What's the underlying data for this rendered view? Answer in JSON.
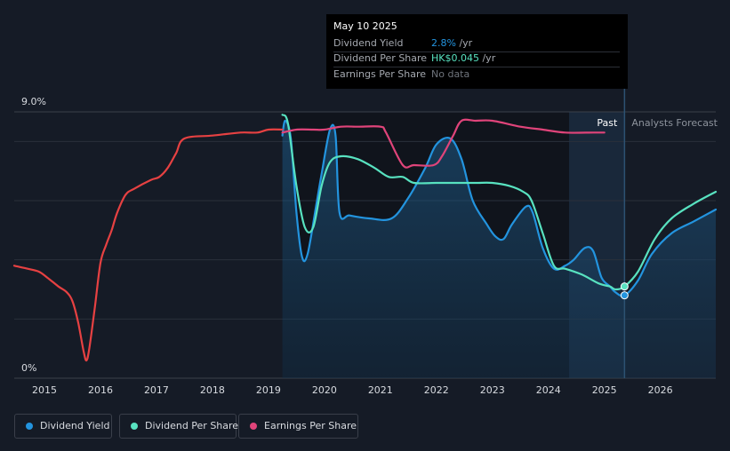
{
  "colors": {
    "background": "#151b26",
    "dividend_yield": "#2394df",
    "dividend_per_share": "#58e2c0",
    "earnings_per_share": "#e0447a",
    "price_history": "#e64142",
    "grid": "#2a303b",
    "text": "#d8dbe0",
    "muted": "#8d939c"
  },
  "tooltip": {
    "date": "May 10 2025",
    "rows": [
      {
        "label": "Dividend Yield",
        "value": "2.8%",
        "unit": " /yr"
      },
      {
        "label": "Dividend Per Share",
        "value": "HK$0.045",
        "unit": " /yr"
      },
      {
        "label": "Earnings Per Share",
        "value": "No data",
        "unit": ""
      }
    ]
  },
  "labels": {
    "past": "Past",
    "forecast": "Analysts Forecast",
    "y_top": "9.0%",
    "y_bottom": "0%"
  },
  "legend": [
    {
      "label": "Dividend Yield",
      "color": "#2394df"
    },
    {
      "label": "Dividend Per Share",
      "color": "#58e2c0"
    },
    {
      "label": "Earnings Per Share",
      "color": "#e0447a"
    }
  ],
  "chart_data": {
    "type": "line",
    "title": "",
    "xlabel": "",
    "ylabel": "",
    "x_ticks": [
      "2015",
      "2016",
      "2017",
      "2018",
      "2019",
      "2020",
      "2021",
      "2022",
      "2023",
      "2024",
      "2025",
      "2026"
    ],
    "ylim": [
      0,
      9.0
    ],
    "xlim": [
      2014.46,
      2026.99
    ],
    "past_start": 2019.25,
    "forecast_start": 2025.36,
    "highlight_start": 2024.37,
    "series": [
      {
        "name": "Dividend Yield",
        "key": "dividend_yield",
        "area": true,
        "points": [
          [
            2019.25,
            8.2
          ],
          [
            2019.3,
            8.7
          ],
          [
            2019.4,
            8.1
          ],
          [
            2019.5,
            5.6
          ],
          [
            2019.6,
            4.1
          ],
          [
            2019.7,
            4.2
          ],
          [
            2019.85,
            5.8
          ],
          [
            2019.95,
            6.9
          ],
          [
            2020.1,
            8.4
          ],
          [
            2020.2,
            8.2
          ],
          [
            2020.27,
            5.6
          ],
          [
            2020.45,
            5.5
          ],
          [
            2020.8,
            5.4
          ],
          [
            2021.2,
            5.4
          ],
          [
            2021.5,
            6.1
          ],
          [
            2021.8,
            7.1
          ],
          [
            2022.0,
            7.9
          ],
          [
            2022.25,
            8.1
          ],
          [
            2022.45,
            7.4
          ],
          [
            2022.65,
            6.0
          ],
          [
            2022.9,
            5.2
          ],
          [
            2023.05,
            4.8
          ],
          [
            2023.2,
            4.7
          ],
          [
            2023.35,
            5.2
          ],
          [
            2023.6,
            5.8
          ],
          [
            2023.72,
            5.6
          ],
          [
            2023.9,
            4.4
          ],
          [
            2024.1,
            3.7
          ],
          [
            2024.3,
            3.8
          ],
          [
            2024.45,
            4.0
          ],
          [
            2024.65,
            4.4
          ],
          [
            2024.8,
            4.3
          ],
          [
            2024.95,
            3.4
          ],
          [
            2025.1,
            3.1
          ],
          [
            2025.2,
            2.9
          ],
          [
            2025.36,
            2.8
          ],
          [
            2025.6,
            3.3
          ],
          [
            2025.85,
            4.2
          ],
          [
            2026.2,
            4.9
          ],
          [
            2026.6,
            5.3
          ],
          [
            2026.99,
            5.7
          ]
        ]
      },
      {
        "name": "Dividend Per Share",
        "key": "dividend_per_share",
        "area": false,
        "points": [
          [
            2019.25,
            8.9
          ],
          [
            2019.35,
            8.6
          ],
          [
            2019.5,
            6.5
          ],
          [
            2019.65,
            5.1
          ],
          [
            2019.8,
            5.1
          ],
          [
            2019.95,
            6.5
          ],
          [
            2020.1,
            7.3
          ],
          [
            2020.3,
            7.5
          ],
          [
            2020.6,
            7.4
          ],
          [
            2020.9,
            7.1
          ],
          [
            2021.15,
            6.8
          ],
          [
            2021.4,
            6.8
          ],
          [
            2021.6,
            6.6
          ],
          [
            2022.0,
            6.6
          ],
          [
            2022.3,
            6.6
          ],
          [
            2022.7,
            6.6
          ],
          [
            2023.0,
            6.6
          ],
          [
            2023.3,
            6.5
          ],
          [
            2023.55,
            6.3
          ],
          [
            2023.7,
            6.0
          ],
          [
            2023.9,
            4.9
          ],
          [
            2024.1,
            3.8
          ],
          [
            2024.3,
            3.7
          ],
          [
            2024.6,
            3.5
          ],
          [
            2024.9,
            3.2
          ],
          [
            2025.1,
            3.1
          ],
          [
            2025.2,
            3.0
          ],
          [
            2025.36,
            3.1
          ],
          [
            2025.6,
            3.6
          ],
          [
            2025.9,
            4.7
          ],
          [
            2026.2,
            5.4
          ],
          [
            2026.6,
            5.9
          ],
          [
            2026.99,
            6.3
          ]
        ]
      },
      {
        "name": "Earnings Per Share",
        "key": "earnings_per_share",
        "area": false,
        "points": [
          [
            2019.25,
            8.3
          ],
          [
            2019.5,
            8.4
          ],
          [
            2019.8,
            8.4
          ],
          [
            2020.0,
            8.4
          ],
          [
            2020.3,
            8.5
          ],
          [
            2020.6,
            8.5
          ],
          [
            2021.0,
            8.5
          ],
          [
            2021.1,
            8.3
          ],
          [
            2021.4,
            7.2
          ],
          [
            2021.6,
            7.2
          ],
          [
            2021.95,
            7.2
          ],
          [
            2022.1,
            7.5
          ],
          [
            2022.3,
            8.2
          ],
          [
            2022.45,
            8.7
          ],
          [
            2022.7,
            8.7
          ],
          [
            2023.0,
            8.7
          ],
          [
            2023.5,
            8.5
          ],
          [
            2023.9,
            8.4
          ],
          [
            2024.3,
            8.3
          ],
          [
            2024.8,
            8.3
          ],
          [
            2025.0,
            8.3
          ]
        ]
      },
      {
        "name": "",
        "key": "price_history",
        "area": false,
        "points": [
          [
            2014.46,
            3.8
          ],
          [
            2014.7,
            3.7
          ],
          [
            2014.9,
            3.6
          ],
          [
            2015.05,
            3.4
          ],
          [
            2015.25,
            3.1
          ],
          [
            2015.4,
            2.9
          ],
          [
            2015.5,
            2.6
          ],
          [
            2015.6,
            1.9
          ],
          [
            2015.7,
            0.9
          ],
          [
            2015.75,
            0.6
          ],
          [
            2015.8,
            1.0
          ],
          [
            2015.9,
            2.4
          ],
          [
            2016.0,
            3.9
          ],
          [
            2016.1,
            4.5
          ],
          [
            2016.2,
            5.0
          ],
          [
            2016.3,
            5.6
          ],
          [
            2016.45,
            6.2
          ],
          [
            2016.6,
            6.4
          ],
          [
            2016.9,
            6.7
          ],
          [
            2017.05,
            6.8
          ],
          [
            2017.2,
            7.1
          ],
          [
            2017.35,
            7.6
          ],
          [
            2017.5,
            8.1
          ],
          [
            2018.0,
            8.2
          ],
          [
            2018.5,
            8.3
          ],
          [
            2018.8,
            8.3
          ],
          [
            2019.0,
            8.4
          ],
          [
            2019.25,
            8.4
          ]
        ]
      }
    ],
    "markers": [
      {
        "series": "dividend_yield",
        "x": 2025.36,
        "y": 2.8
      },
      {
        "series": "dividend_per_share",
        "x": 2025.36,
        "y": 3.1
      }
    ]
  }
}
